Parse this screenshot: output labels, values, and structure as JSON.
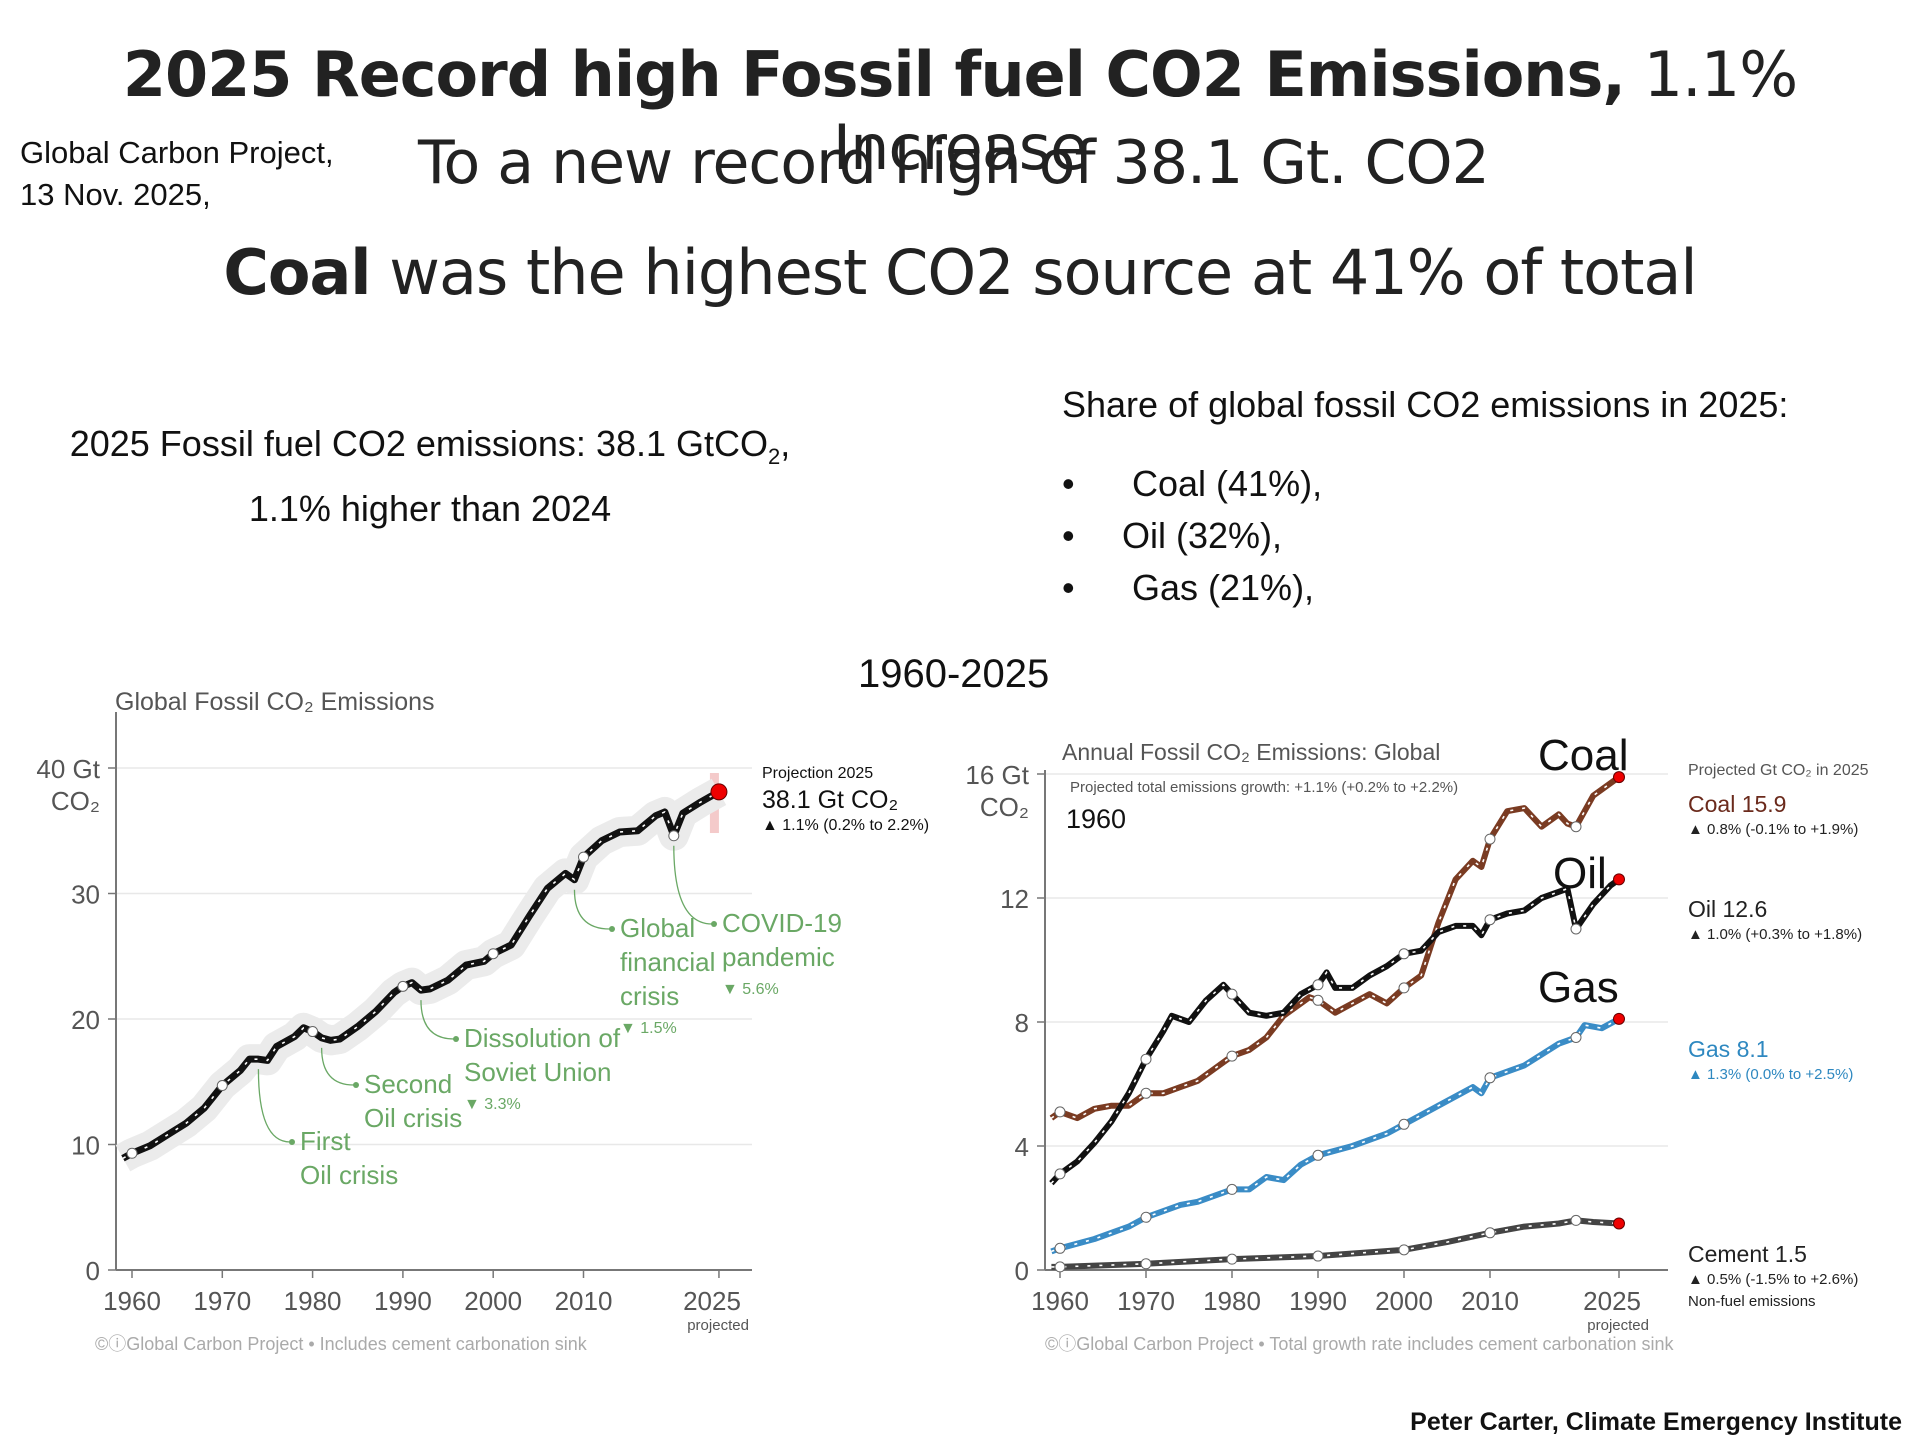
{
  "header": {
    "title_bold": "2025 Record high Fossil fuel CO2 Emissions,",
    "title_rest": " 1.1% Increase",
    "subtitle": "To a new record high of 38.1 Gt. CO2",
    "coal_bold": "Coal",
    "coal_rest": " was the highest CO2 source at 41% of total",
    "source_line1": "Global Carbon Project,",
    "source_line2": "13 Nov. 2025,"
  },
  "summary": {
    "line1": "2025 Fossil fuel CO2 emissions: 38.1 GtCO",
    "line1_sub": "2",
    "line1_end": ",",
    "line2": "1.1% higher than 2024"
  },
  "share": {
    "heading": "Share of global fossil CO2 emissions in 2025:",
    "items": [
      {
        "bullet": "•",
        "label": "Coal (41%),"
      },
      {
        "bullet": "•",
        "label": "Oil (32%),"
      },
      {
        "bullet": "•",
        "label": "Gas (21%),"
      }
    ]
  },
  "range_label": "1960-2025",
  "byline": "Peter Carter, Climate Emergency Institute",
  "chart_data": [
    {
      "type": "line",
      "title": "Global Fossil CO₂ Emissions",
      "ylabel_top": "40 Gt",
      "ylabel_unit": "CO₂",
      "ylim": [
        0,
        40
      ],
      "yticks": [
        "0",
        "10",
        "20",
        "30"
      ],
      "xticks": [
        "1960",
        "1970",
        "1980",
        "1990",
        "2000",
        "2010",
        "2025"
      ],
      "xtick_note": "projected",
      "footer": "©ⓘGlobal Carbon Project  •  Includes cement carbonation sink",
      "projection": {
        "heading": "Projection 2025",
        "value": "38.1 Gt CO₂",
        "change": "▲ 1.1% (0.2% to 2.2%)"
      },
      "annotations": [
        {
          "label": [
            "First",
            "Oil crisis"
          ],
          "year": 1974,
          "change": ""
        },
        {
          "label": [
            "Second",
            "Oil crisis"
          ],
          "year": 1981,
          "change": ""
        },
        {
          "label": [
            "Dissolution of",
            "Soviet Union"
          ],
          "year": 1992,
          "change": "▼ 3.3%"
        },
        {
          "label": [
            "Global",
            "financial",
            "crisis"
          ],
          "year": 2009,
          "change": "▼ 1.5%"
        },
        {
          "label": [
            "COVID-19",
            "pandemic"
          ],
          "year": 2020,
          "change": "▼ 5.6%"
        }
      ],
      "series": [
        {
          "name": "Total fossil CO2",
          "color": "#111111",
          "x": [
            1959,
            1960,
            1962,
            1964,
            1966,
            1968,
            1970,
            1972,
            1973,
            1974,
            1975,
            1976,
            1978,
            1979,
            1980,
            1981,
            1982,
            1983,
            1985,
            1987,
            1989,
            1990,
            1991,
            1992,
            1993,
            1995,
            1997,
            1999,
            2000,
            2002,
            2004,
            2006,
            2008,
            2009,
            2010,
            2012,
            2014,
            2016,
            2018,
            2019,
            2020,
            2021,
            2023,
            2024,
            2025
          ],
          "y": [
            8.9,
            9.3,
            9.9,
            10.8,
            11.7,
            12.9,
            14.7,
            15.9,
            16.8,
            16.8,
            16.7,
            17.8,
            18.6,
            19.3,
            19.0,
            18.5,
            18.3,
            18.4,
            19.4,
            20.6,
            22.1,
            22.6,
            22.9,
            22.3,
            22.4,
            23.1,
            24.3,
            24.6,
            25.2,
            25.9,
            28.2,
            30.4,
            31.6,
            31.1,
            32.9,
            34.2,
            34.9,
            35.0,
            36.2,
            36.5,
            34.6,
            36.4,
            37.3,
            37.7,
            38.1
          ]
        }
      ]
    },
    {
      "type": "line",
      "title": "Annual Fossil CO₂ Emissions: Global",
      "subtitle": "Projected total emissions growth: +1.1% (+0.2% to +2.2%)",
      "overlay_year": "1960",
      "ylabel_top": "16 Gt",
      "ylabel_unit": "CO₂",
      "ylim": [
        0,
        16
      ],
      "yticks": [
        "0",
        "4",
        "8",
        "12"
      ],
      "xticks": [
        "1960",
        "1970",
        "1980",
        "1990",
        "2000",
        "2010",
        "2025"
      ],
      "xtick_note": "projected",
      "footer": "©ⓘGlobal Carbon Project  •  Total growth rate includes cement carbonation sink",
      "legend_heading": "Projected Gt CO₂ in 2025",
      "overlay_labels": [
        "Coal",
        "Oil",
        "Gas"
      ],
      "series": [
        {
          "name": "Coal",
          "value_label": "Coal 15.9",
          "change": "▲ 0.8% (-0.1% to +1.9%)",
          "color": "#7a3b22",
          "x": [
            1959,
            1960,
            1962,
            1964,
            1966,
            1968,
            1970,
            1972,
            1974,
            1976,
            1978,
            1980,
            1982,
            1984,
            1986,
            1988,
            1989,
            1990,
            1992,
            1994,
            1996,
            1998,
            2000,
            2002,
            2004,
            2006,
            2008,
            2009,
            2010,
            2012,
            2014,
            2016,
            2018,
            2019,
            2020,
            2022,
            2025
          ],
          "y": [
            4.9,
            5.1,
            4.9,
            5.2,
            5.3,
            5.3,
            5.7,
            5.7,
            5.9,
            6.1,
            6.5,
            6.9,
            7.1,
            7.5,
            8.2,
            8.6,
            8.8,
            8.7,
            8.3,
            8.6,
            8.9,
            8.6,
            9.1,
            9.5,
            11.2,
            12.6,
            13.2,
            13.0,
            13.9,
            14.8,
            14.9,
            14.3,
            14.7,
            14.4,
            14.3,
            15.3,
            15.9
          ]
        },
        {
          "name": "Oil",
          "value_label": "Oil 12.6",
          "change": "▲ 1.0% (+0.3% to +1.8%)",
          "color": "#111111",
          "x": [
            1959,
            1960,
            1962,
            1964,
            1966,
            1968,
            1970,
            1972,
            1973,
            1975,
            1977,
            1979,
            1980,
            1982,
            1984,
            1986,
            1988,
            1990,
            1991,
            1992,
            1994,
            1996,
            1998,
            2000,
            2002,
            2004,
            2006,
            2008,
            2009,
            2010,
            2012,
            2014,
            2016,
            2018,
            2019,
            2020,
            2022,
            2024,
            2025
          ],
          "y": [
            2.8,
            3.1,
            3.5,
            4.1,
            4.8,
            5.7,
            6.8,
            7.7,
            8.2,
            8.0,
            8.7,
            9.2,
            8.9,
            8.3,
            8.2,
            8.3,
            8.9,
            9.2,
            9.6,
            9.1,
            9.1,
            9.5,
            9.8,
            10.2,
            10.3,
            10.9,
            11.1,
            11.1,
            10.8,
            11.3,
            11.5,
            11.6,
            12.0,
            12.2,
            12.3,
            11.0,
            11.8,
            12.4,
            12.6
          ]
        },
        {
          "name": "Gas",
          "value_label": "Gas 8.1",
          "change": "▲ 1.3% (0.0% to +2.5%)",
          "color": "#3a8cc6",
          "x": [
            1959,
            1960,
            1964,
            1968,
            1970,
            1974,
            1976,
            1980,
            1982,
            1984,
            1986,
            1988,
            1990,
            1994,
            1998,
            2000,
            2004,
            2008,
            2009,
            2010,
            2014,
            2018,
            2020,
            2021,
            2023,
            2025
          ],
          "y": [
            0.6,
            0.7,
            1.0,
            1.4,
            1.7,
            2.1,
            2.2,
            2.6,
            2.6,
            3.0,
            2.9,
            3.4,
            3.7,
            4.0,
            4.4,
            4.7,
            5.3,
            5.9,
            5.7,
            6.2,
            6.6,
            7.3,
            7.5,
            7.9,
            7.8,
            8.1
          ]
        },
        {
          "name": "Cement",
          "value_label": "Cement 1.5",
          "change": "▲ 0.5% (-1.5% to +2.6%)",
          "note": "Non-fuel emissions",
          "color": "#444444",
          "x": [
            1959,
            1960,
            1970,
            1980,
            1990,
            2000,
            2005,
            2010,
            2014,
            2018,
            2020,
            2022,
            2025
          ],
          "y": [
            0.1,
            0.1,
            0.2,
            0.35,
            0.45,
            0.65,
            0.9,
            1.2,
            1.4,
            1.5,
            1.6,
            1.55,
            1.5
          ]
        }
      ]
    }
  ]
}
